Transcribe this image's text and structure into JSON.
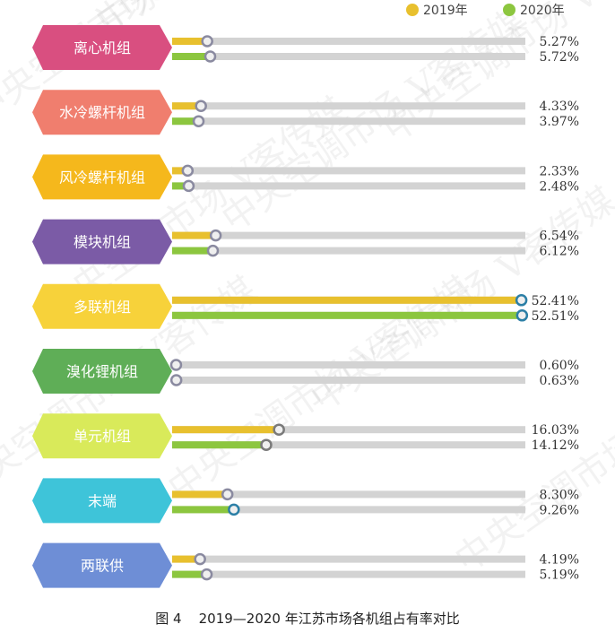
{
  "chart_data": {
    "type": "bar",
    "title": "",
    "caption_fig": "图 4",
    "caption_text": "2019—2020 年江苏市场各机组占有率对比",
    "xlim": [
      0,
      53
    ],
    "series": [
      {
        "name": "2019年",
        "color": "#E8C02E",
        "values": [
          5.27,
          4.33,
          2.33,
          6.54,
          52.41,
          0.6,
          16.03,
          8.3,
          4.19
        ],
        "labels": [
          "5.27%",
          "4.33%",
          "2.33%",
          "6.54%",
          "52.41%",
          "0.60%",
          "16.03%",
          "8.30%",
          "4.19%"
        ]
      },
      {
        "name": "2020年",
        "color": "#8CC63F",
        "values": [
          5.72,
          3.97,
          2.48,
          6.12,
          52.51,
          0.63,
          14.12,
          9.26,
          5.19
        ],
        "labels": [
          "5.72%",
          "3.97%",
          "2.48%",
          "6.12%",
          "52.51%",
          "0.63%",
          "14.12%",
          "9.26%",
          "5.19%"
        ]
      }
    ],
    "categories": [
      {
        "label": "离心机组",
        "color": "#D94F80"
      },
      {
        "label": "水冷螺杆机组",
        "color": "#F07E6E"
      },
      {
        "label": "风冷螺杆机组",
        "color": "#F5B81C"
      },
      {
        "label": "模块机组",
        "color": "#7B5BA6"
      },
      {
        "label": "多联机组",
        "color": "#F7D23A"
      },
      {
        "label": "溴化锂机组",
        "color": "#5FAE57"
      },
      {
        "label": "单元机组",
        "color": "#D9EA5A"
      },
      {
        "label": "末端",
        "color": "#3EC4D9"
      },
      {
        "label": "两联供",
        "color": "#6E8ED6"
      }
    ],
    "legend_position": "top-right",
    "watermark": "中央空调市场 V客传媒"
  }
}
